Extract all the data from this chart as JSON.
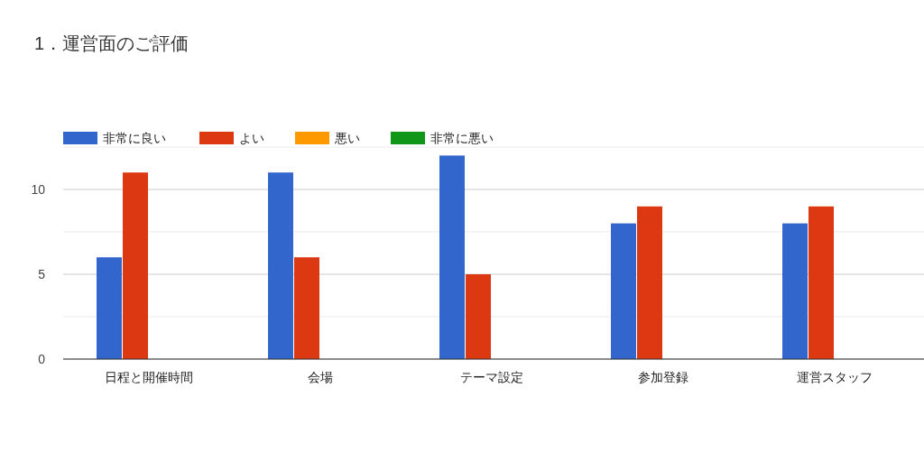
{
  "chart_data": {
    "type": "bar",
    "title": "1．運営面のご評価",
    "categories": [
      "日程と開催時間",
      "会場",
      "テーマ設定",
      "参加登録",
      "運営スタッフ"
    ],
    "series": [
      {
        "name": "非常に良い",
        "color": "#3366cc",
        "values": [
          6,
          11,
          12,
          8,
          8
        ]
      },
      {
        "name": "よい",
        "color": "#dc3912",
        "values": [
          11,
          6,
          5,
          9,
          9
        ]
      },
      {
        "name": "悪い",
        "color": "#ff9900",
        "values": [
          0,
          0,
          0,
          0,
          0
        ]
      },
      {
        "name": "非常に悪い",
        "color": "#109618",
        "values": [
          0,
          0,
          0,
          0,
          0
        ]
      }
    ],
    "ylim": [
      0,
      12.5
    ],
    "yticks": [
      0,
      {
        "value": 2.5,
        "label": null
      },
      5,
      {
        "value": 7.5,
        "label": null
      },
      10,
      {
        "value": 12.5,
        "label": null
      }
    ],
    "grid": "y",
    "legend": "top left"
  }
}
